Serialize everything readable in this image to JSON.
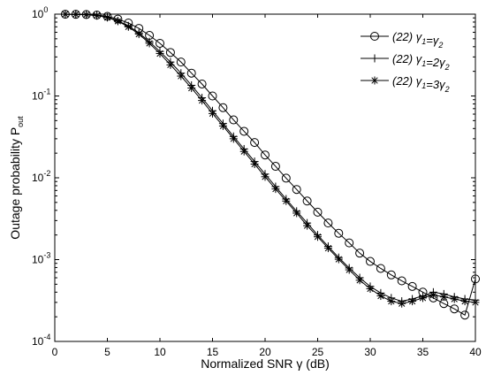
{
  "chart_data": {
    "type": "line",
    "title": "",
    "xlabel": "Normalized SNR γ (dB)",
    "ylabel": {
      "main": "Outage probability P",
      "sub": "out"
    },
    "xlim": [
      0,
      40
    ],
    "ylim": [
      0.0001,
      1
    ],
    "yscale": "log",
    "grid": false,
    "legend_position": "top-right",
    "x_ticks": [
      "0",
      "5",
      "10",
      "15",
      "20",
      "25",
      "30",
      "35",
      "40"
    ],
    "y_ticks": [
      {
        "base": "10",
        "exp": "0"
      },
      {
        "base": "10",
        "exp": "-1"
      },
      {
        "base": "10",
        "exp": "-2"
      },
      {
        "base": "10",
        "exp": "-3"
      },
      {
        "base": "10",
        "exp": "-4"
      }
    ],
    "x": [
      1,
      2,
      3,
      4,
      5,
      6,
      7,
      8,
      9,
      10,
      11,
      12,
      13,
      14,
      15,
      16,
      17,
      18,
      19,
      20,
      21,
      22,
      23,
      24,
      25,
      26,
      27,
      28,
      29,
      30,
      31,
      32,
      33,
      34,
      35,
      36,
      37,
      38,
      39,
      40
    ],
    "series": [
      {
        "legend": {
          "prefix": "(22) ",
          "parts": [
            [
              "γ",
              "1"
            ],
            [
              "=γ",
              "2"
            ]
          ]
        },
        "marker": "circle",
        "values": [
          0.998,
          0.996,
          0.99,
          0.975,
          0.94,
          0.87,
          0.78,
          0.67,
          0.55,
          0.44,
          0.34,
          0.26,
          0.19,
          0.14,
          0.1,
          0.072,
          0.051,
          0.037,
          0.027,
          0.019,
          0.0138,
          0.0099,
          0.0072,
          0.0052,
          0.0038,
          0.0028,
          0.0021,
          0.0016,
          0.0012,
          0.00095,
          0.00078,
          0.00065,
          0.00055,
          0.00047,
          0.0004,
          0.00034,
          0.00029,
          0.00025,
          0.00021,
          0.00058
        ]
      },
      {
        "legend": {
          "prefix": "(22) ",
          "parts": [
            [
              "γ",
              "1"
            ],
            [
              "=2γ",
              "2"
            ]
          ]
        },
        "marker": "plus",
        "values": [
          0.998,
          0.995,
          0.985,
          0.96,
          0.92,
          0.83,
          0.72,
          0.59,
          0.46,
          0.35,
          0.26,
          0.19,
          0.135,
          0.095,
          0.066,
          0.046,
          0.032,
          0.0225,
          0.0158,
          0.0111,
          0.0078,
          0.0055,
          0.0039,
          0.0028,
          0.002,
          0.00145,
          0.00106,
          0.00079,
          0.0006,
          0.00047,
          0.00039,
          0.00034,
          0.00031,
          0.00033,
          0.00036,
          0.0004,
          0.00038,
          0.00035,
          0.00033,
          0.00032
        ]
      },
      {
        "legend": {
          "prefix": "(22) ",
          "parts": [
            [
              "γ",
              "1"
            ],
            [
              "=3γ",
              "2"
            ]
          ]
        },
        "marker": "star",
        "values": [
          0.998,
          0.995,
          0.985,
          0.96,
          0.91,
          0.82,
          0.7,
          0.57,
          0.44,
          0.33,
          0.24,
          0.175,
          0.125,
          0.088,
          0.061,
          0.043,
          0.03,
          0.021,
          0.0147,
          0.0103,
          0.0073,
          0.0052,
          0.0037,
          0.0026,
          0.0019,
          0.00138,
          0.00101,
          0.00075,
          0.00056,
          0.00044,
          0.00036,
          0.00031,
          0.00029,
          0.00031,
          0.00034,
          0.00037,
          0.00035,
          0.00033,
          0.00031,
          0.0003
        ]
      }
    ]
  }
}
